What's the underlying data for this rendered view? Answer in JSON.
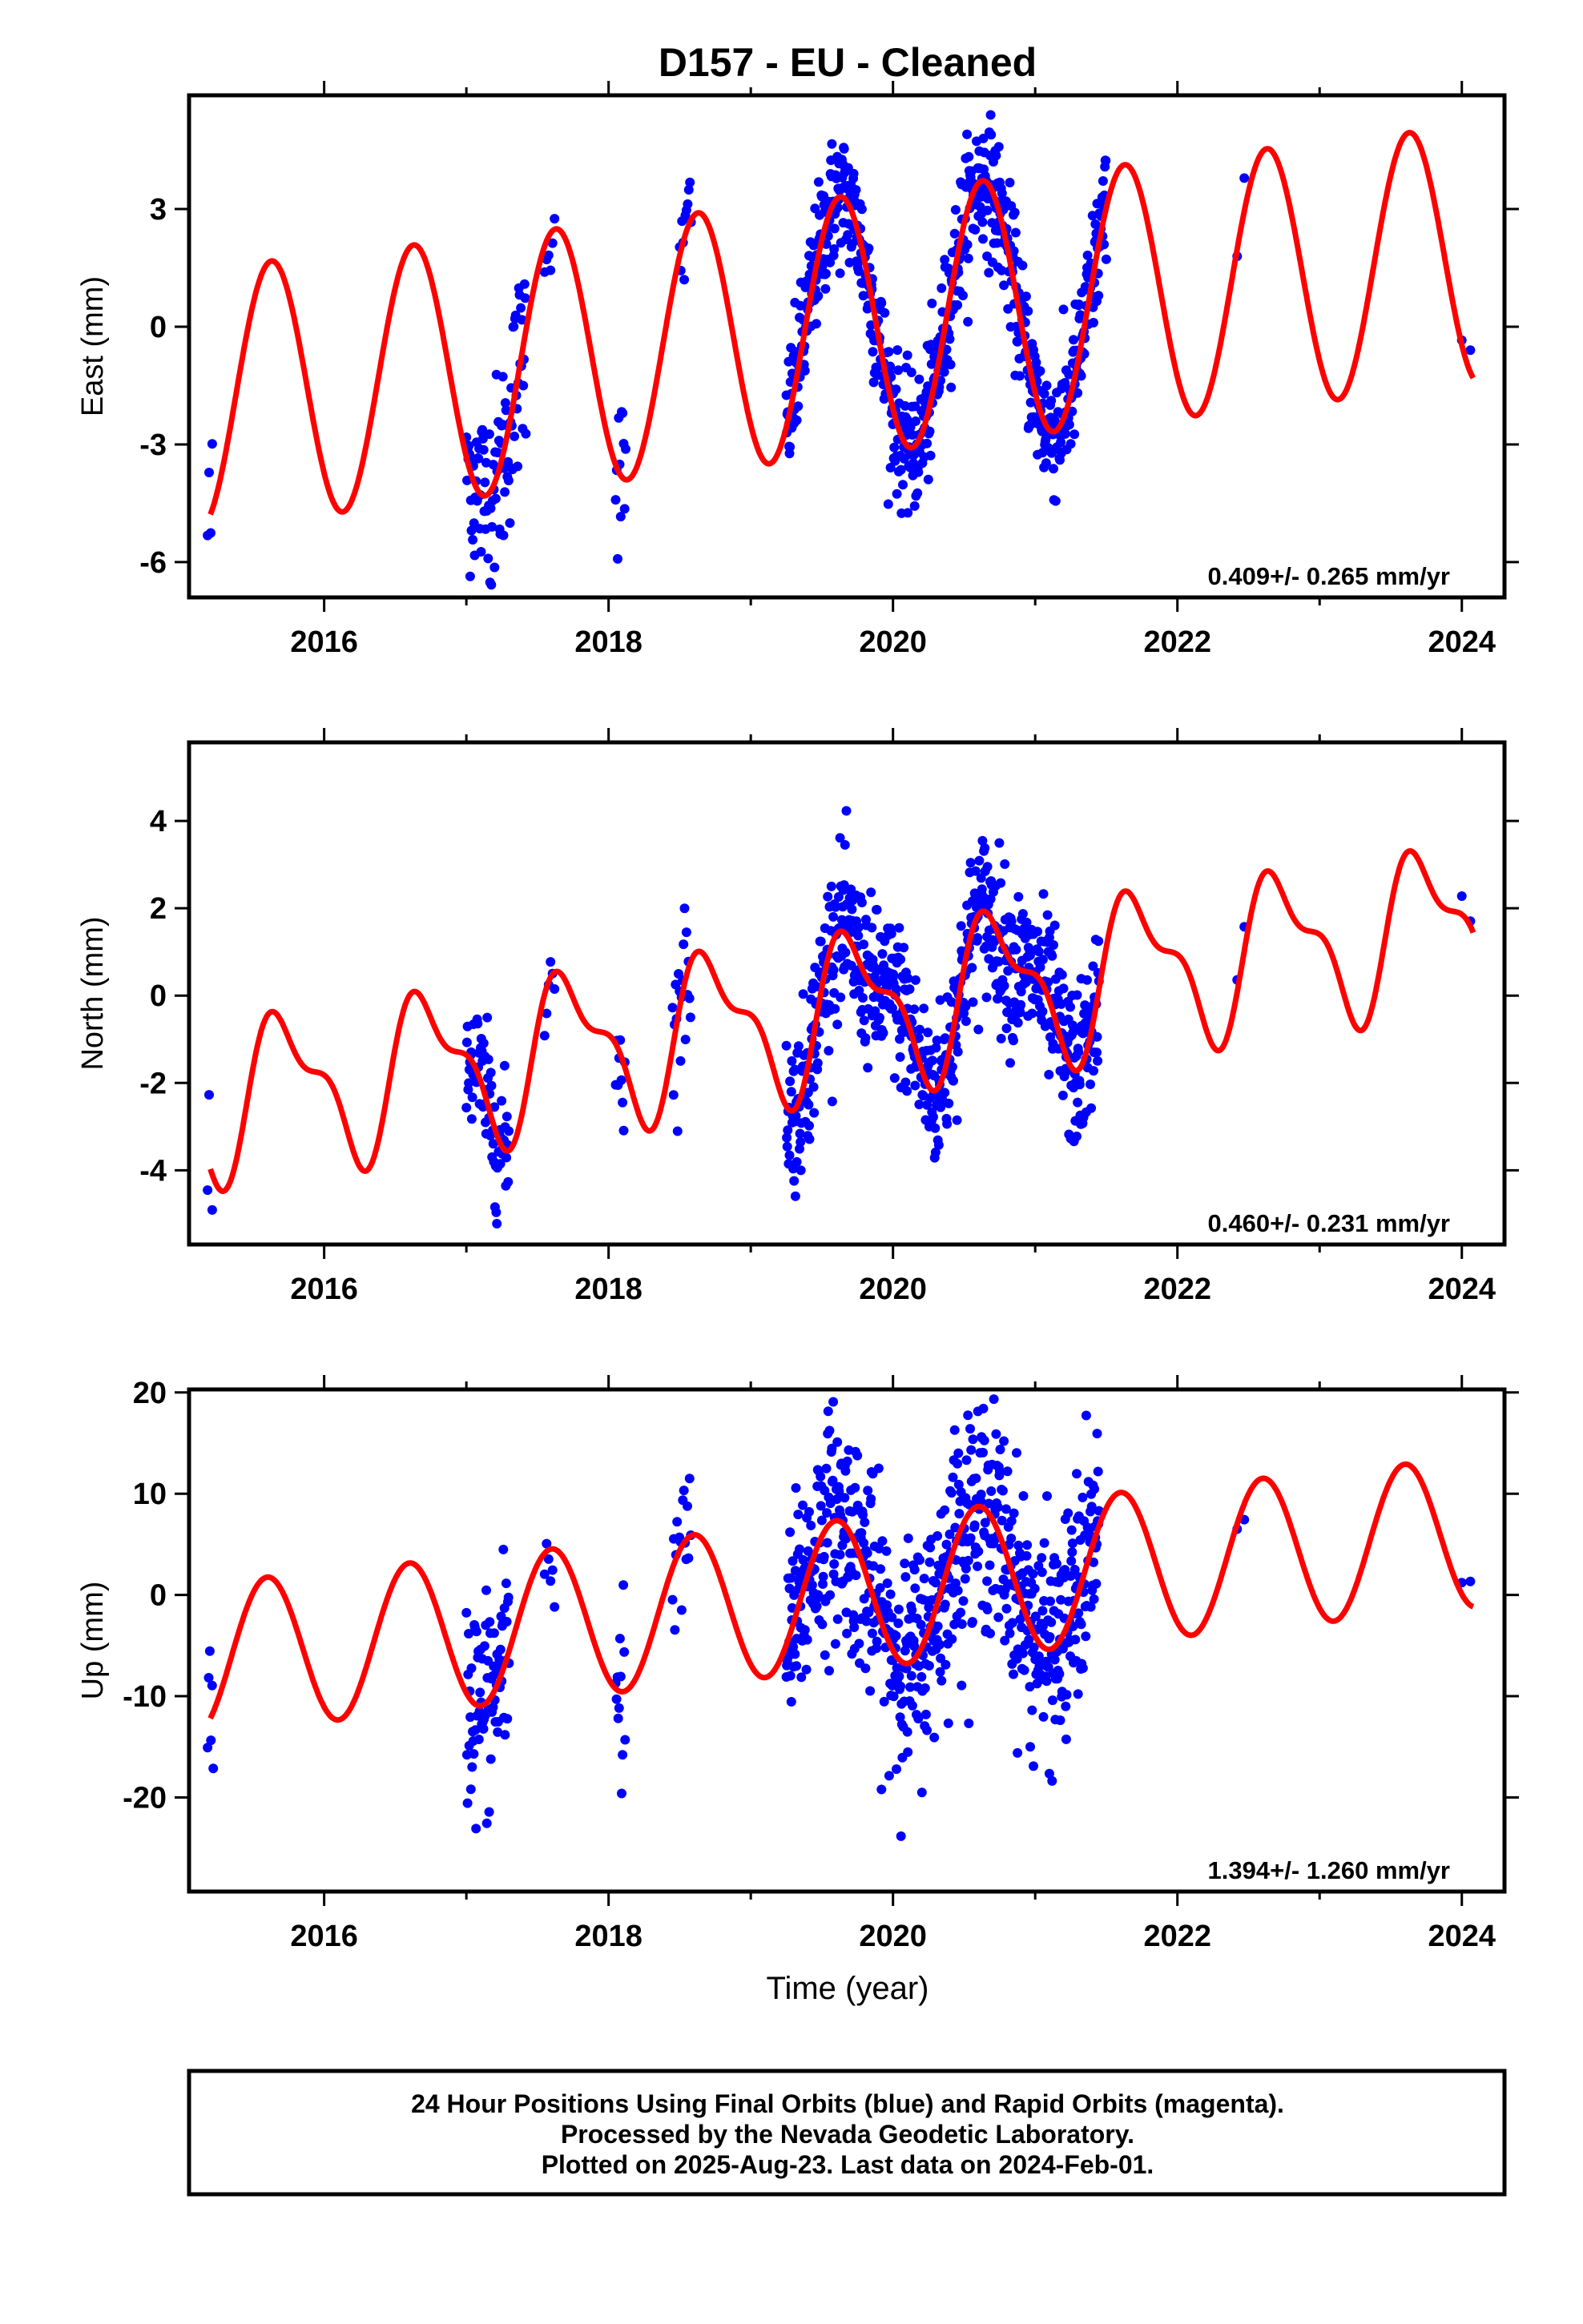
{
  "title": "D157  - EU - Cleaned",
  "xlabel": "Time (year)",
  "footer": {
    "line1": "24 Hour Positions Using Final Orbits (blue) and Rapid Orbits (magenta).",
    "line2": "Processed by the Nevada Geodetic Laboratory.",
    "line3": "Plotted on 2025-Aug-23. Last data on 2024-Feb-01."
  },
  "colors": {
    "data": "#0000ff",
    "model": "#ff0000",
    "axis": "#000000"
  },
  "chart_data": [
    {
      "type": "scatter",
      "component": "east",
      "ylabel": "East (mm)",
      "rate_text": "0.409+/- 0.265 mm/yr",
      "xlim": [
        2015.05,
        2024.3
      ],
      "ylim": [
        -6.9,
        5.9
      ],
      "xticks": [
        2016,
        2018,
        2020,
        2022,
        2024
      ],
      "yticks": [
        -6,
        -3,
        0,
        3
      ],
      "model": {
        "offset": -1.8,
        "rate": 0.409,
        "amp": 3.3,
        "phase_year": 2015.38,
        "semi_amp": 0,
        "semi_phase": 0,
        "t0": 2015.2,
        "t_end": 2024.08
      },
      "segments": [
        {
          "start": 2015.18,
          "end": 2015.22,
          "spacing": 0.011,
          "scatter": 1.2
        },
        {
          "start": 2017.0,
          "end": 2017.42,
          "spacing": 0.0045,
          "scatter": 1.3
        },
        {
          "start": 2017.55,
          "end": 2017.62,
          "spacing": 0.014,
          "scatter": 0.8
        },
        {
          "start": 2018.05,
          "end": 2018.12,
          "spacing": 0.007,
          "scatter": 1.1
        },
        {
          "start": 2018.5,
          "end": 2018.58,
          "spacing": 0.008,
          "scatter": 0.7
        },
        {
          "start": 2019.25,
          "end": 2021.5,
          "spacing": 0.0032,
          "scatter": 0.85
        },
        {
          "start": 2022.42,
          "end": 2022.5,
          "spacing": 0.05,
          "scatter": 0.4
        },
        {
          "start": 2024.0,
          "end": 2024.1,
          "spacing": 0.06,
          "scatter": 0.5
        }
      ]
    },
    {
      "type": "scatter",
      "component": "north",
      "ylabel": "North (mm)",
      "rate_text": "0.460+/- 0.231 mm/yr",
      "xlim": [
        2015.05,
        2024.3
      ],
      "ylim": [
        -5.7,
        5.8
      ],
      "xticks": [
        2016,
        2018,
        2020,
        2022,
        2024
      ],
      "yticks": [
        -4,
        -2,
        0,
        2,
        4
      ],
      "model": {
        "offset": -2.4,
        "rate": 0.46,
        "amp": 1.6,
        "phase_year": 2015.48,
        "semi_amp": 0.7,
        "semi_phase": 2015.45,
        "t0": 2015.2,
        "t_end": 2024.08
      },
      "segments": [
        {
          "start": 2015.18,
          "end": 2015.22,
          "spacing": 0.011,
          "scatter": 0.9
        },
        {
          "start": 2017.0,
          "end": 2017.3,
          "spacing": 0.0042,
          "scatter": 0.8
        },
        {
          "start": 2017.55,
          "end": 2017.62,
          "spacing": 0.014,
          "scatter": 0.6
        },
        {
          "start": 2018.05,
          "end": 2018.12,
          "spacing": 0.008,
          "scatter": 0.9
        },
        {
          "start": 2018.45,
          "end": 2018.58,
          "spacing": 0.007,
          "scatter": 0.9
        },
        {
          "start": 2019.25,
          "end": 2021.45,
          "spacing": 0.0032,
          "scatter": 0.9
        },
        {
          "start": 2022.42,
          "end": 2022.5,
          "spacing": 0.05,
          "scatter": 0.4
        },
        {
          "start": 2024.0,
          "end": 2024.1,
          "spacing": 0.06,
          "scatter": 0.5
        }
      ]
    },
    {
      "type": "scatter",
      "component": "up",
      "ylabel": "Up (mm)",
      "rate_text": "1.394+/- 1.260 mm/yr",
      "xlim": [
        2015.05,
        2024.3
      ],
      "ylim": [
        -29.3,
        20.3
      ],
      "xticks": [
        2016,
        2018,
        2020,
        2022,
        2024
      ],
      "yticks": [
        -20,
        -10,
        0,
        10,
        20
      ],
      "model": {
        "offset": -6.2,
        "rate": 1.394,
        "amp": 7.4,
        "phase_year": 2015.35,
        "semi_amp": 0,
        "semi_phase": 0,
        "t0": 2015.2,
        "t_end": 2024.08
      },
      "segments": [
        {
          "start": 2015.18,
          "end": 2015.22,
          "spacing": 0.008,
          "scatter": 3.5
        },
        {
          "start": 2017.0,
          "end": 2017.3,
          "spacing": 0.004,
          "scatter": 5.5
        },
        {
          "start": 2017.55,
          "end": 2017.62,
          "spacing": 0.014,
          "scatter": 4.0
        },
        {
          "start": 2018.05,
          "end": 2018.12,
          "spacing": 0.006,
          "scatter": 6.5
        },
        {
          "start": 2018.45,
          "end": 2018.58,
          "spacing": 0.008,
          "scatter": 3.0
        },
        {
          "start": 2019.25,
          "end": 2021.45,
          "spacing": 0.0032,
          "scatter": 5.5
        },
        {
          "start": 2022.42,
          "end": 2022.5,
          "spacing": 0.05,
          "scatter": 1.5
        },
        {
          "start": 2024.0,
          "end": 2024.1,
          "spacing": 0.06,
          "scatter": 1.0
        }
      ]
    }
  ]
}
